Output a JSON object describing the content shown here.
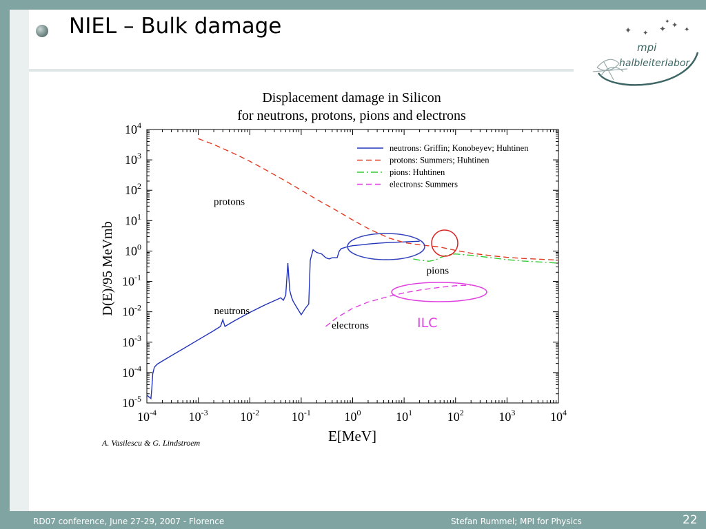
{
  "slide": {
    "title": "NIEL – Bulk damage",
    "footer_left": "RD07 conference, June 27-29, 2007 - Florence",
    "footer_right": "Stefan  Rummel; MPI for Physics",
    "page_number": "22",
    "logo_line1": "mpi",
    "logo_line2": "halbleiterlabor",
    "credit": "A. Vasilescu & G. Lindstroem",
    "annotation": "ILC",
    "annotation_color": "#e040e0",
    "accent_color": "#7fa4a2"
  },
  "chart_data": {
    "type": "line",
    "title": "Displacement damage in Silicon",
    "subtitle": "for neutrons, protons, pions and electrons",
    "xlabel": "E[MeV]",
    "ylabel": "D(E)/95 MeVmb",
    "xscale": "log",
    "yscale": "log",
    "xlim": [
      0.0001,
      10000
    ],
    "ylim": [
      1e-05,
      10000
    ],
    "xticks": [
      "10-4",
      "10-3",
      "10-2",
      "10-1",
      "100",
      "101",
      "102",
      "103",
      "104"
    ],
    "yticks": [
      "10-5",
      "10-4",
      "10-3",
      "10-2",
      "10-1",
      "100",
      "101",
      "102",
      "103",
      "104"
    ],
    "grid": false,
    "legend_position": "top-right",
    "series": [
      {
        "name": "neutrons: Griffin; Konobeyev; Huhtinen",
        "label": "neutrons",
        "color": "#2233bb",
        "dash": "solid",
        "x": [
          0.0001,
          0.00012,
          0.000125,
          0.00013,
          0.00014,
          0.00016,
          0.0002,
          0.0005,
          0.001,
          0.002,
          0.0027,
          0.003,
          0.0033,
          0.005,
          0.01,
          0.02,
          0.035,
          0.04,
          0.045,
          0.05,
          0.055,
          0.06,
          0.065,
          0.07,
          0.08,
          0.1,
          0.12,
          0.14,
          0.15,
          0.17,
          0.2,
          0.25,
          0.3,
          0.35,
          0.4,
          0.5,
          0.55,
          0.6,
          0.7,
          0.8,
          1.0,
          1.5,
          2,
          3,
          5,
          10,
          20
        ],
        "y": [
          1.8e-05,
          1.4e-05,
          3e-05,
          9e-05,
          0.00015,
          0.00019,
          0.00024,
          0.0006,
          0.0012,
          0.0024,
          0.0033,
          0.0055,
          0.0033,
          0.005,
          0.0095,
          0.017,
          0.026,
          0.029,
          0.024,
          0.035,
          0.4,
          0.05,
          0.03,
          0.022,
          0.015,
          0.008,
          0.013,
          0.018,
          0.5,
          1.1,
          0.9,
          0.8,
          0.6,
          0.55,
          0.6,
          0.6,
          1.0,
          1.2,
          1.3,
          1.4,
          1.5,
          1.6,
          1.7,
          1.8,
          1.9,
          2.0,
          2.1
        ]
      },
      {
        "name": "protons: Summers; Huhtinen",
        "label": "protons",
        "color": "#e03a20",
        "dash": "dashed",
        "x": [
          0.001,
          0.002,
          0.005,
          0.01,
          0.02,
          0.05,
          0.1,
          0.2,
          0.5,
          1,
          2,
          5,
          10,
          20,
          50,
          100,
          200,
          500,
          1000,
          2000,
          5000,
          10000
        ],
        "y": [
          5000,
          3200,
          1600,
          900,
          480,
          200,
          100,
          50,
          21,
          10.5,
          5.5,
          2.7,
          1.9,
          1.6,
          1.35,
          1.05,
          0.85,
          0.7,
          0.62,
          0.57,
          0.53,
          0.5
        ]
      },
      {
        "name": "pions: Huhtinen",
        "label": "pions",
        "color": "#33cc33",
        "dash": "dashdot",
        "x": [
          15,
          20,
          30,
          40,
          50,
          70,
          100,
          200,
          500,
          1000,
          2000,
          5000,
          10000
        ],
        "y": [
          0.55,
          0.5,
          0.46,
          0.5,
          0.6,
          0.75,
          0.8,
          0.72,
          0.6,
          0.52,
          0.47,
          0.43,
          0.4
        ]
      },
      {
        "name": "electrons: Summers",
        "label": "electrons",
        "color": "#e040e0",
        "dash": "dashed",
        "x": [
          0.3,
          0.5,
          1,
          2,
          5,
          10,
          20,
          50,
          100,
          200
        ],
        "y": [
          0.0033,
          0.0065,
          0.013,
          0.021,
          0.032,
          0.042,
          0.052,
          0.064,
          0.072,
          0.076
        ]
      }
    ]
  }
}
